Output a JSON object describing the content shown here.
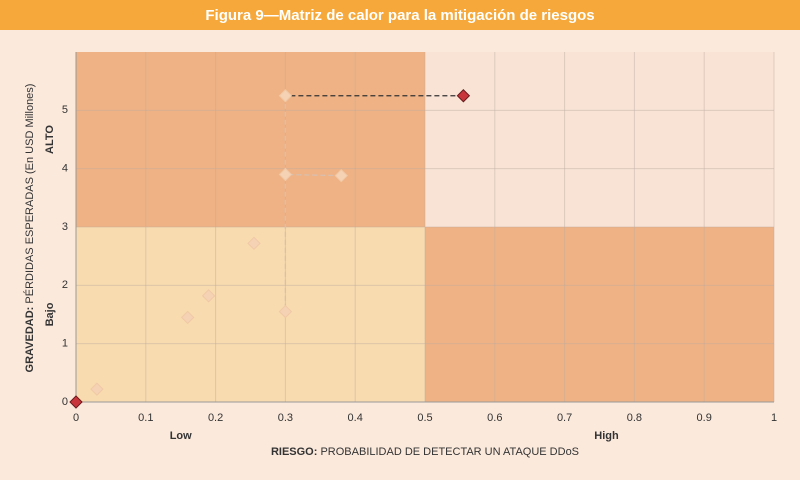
{
  "chart_data": {
    "type": "scatter",
    "title": "Figura 9—Matriz de calor para la mitigación de riesgos",
    "x_label_bold": "RIESGO:",
    "x_label": "PROBABILIDAD DE DETECTAR UN ATAQUE DDoS",
    "y_label_bold": "GRAVEDAD:",
    "y_label": "PÉRDIDAS ESPERADAS (En USD Millones)",
    "x_annotations": [
      {
        "x": 0.15,
        "text": "Low"
      },
      {
        "x": 0.76,
        "text": "High"
      }
    ],
    "y_annotations": [
      {
        "y": 4.5,
        "text": "ALTO"
      },
      {
        "y": 1.5,
        "text": "Bajo"
      }
    ],
    "xlim": [
      0,
      1
    ],
    "ylim": [
      0,
      6
    ],
    "xticks": [
      0,
      0.1,
      0.2,
      0.3,
      0.4,
      0.5,
      0.6,
      0.7,
      0.8,
      0.9,
      1
    ],
    "yticks": [
      0,
      1,
      2,
      3,
      4,
      5
    ],
    "grid": true,
    "quadrants": [
      {
        "x": [
          0,
          0.5
        ],
        "y": [
          3,
          6
        ],
        "color": "#efb284"
      },
      {
        "x": [
          0.5,
          1
        ],
        "y": [
          3,
          6
        ],
        "color": "#f8e3d5"
      },
      {
        "x": [
          0,
          0.5
        ],
        "y": [
          0,
          3
        ],
        "color": "#f8dbae"
      },
      {
        "x": [
          0.5,
          1
        ],
        "y": [
          0,
          3
        ],
        "color": "#efb284"
      }
    ],
    "series": [
      {
        "color": "#f5d2b4",
        "x": [
          0.03,
          0.16,
          0.19,
          0.255,
          0.3,
          0.3,
          0.38,
          0.3
        ],
        "values": [
          0.22,
          1.45,
          1.82,
          2.72,
          1.55,
          3.9,
          3.88,
          5.25
        ]
      },
      {
        "color": "#c8363c",
        "x": [
          0.555,
          0
        ],
        "values": [
          5.25,
          0
        ]
      }
    ]
  }
}
